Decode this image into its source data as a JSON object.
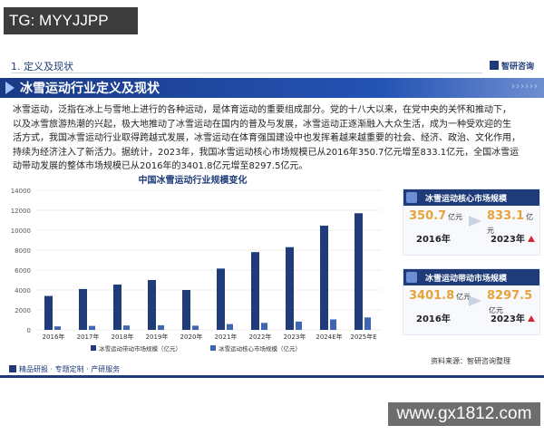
{
  "watermark_top": "TG: MYYJJPP",
  "section": {
    "title": "1. 定义及现状"
  },
  "brand": {
    "name": "智研咨询"
  },
  "banner": {
    "title": "冰雪运动行业定义及现状"
  },
  "paragraph": {
    "lines": [
      "冰雪运动，泛指在冰上与雪地上进行的各种运动，是体育运动的重要组成部分。党的十八大以来，在党中央的关怀和推动下，",
      "以及冰雪旅游热潮的兴起，极大地推动了冰雪运动在国内的普及与发展，冰雪运动正逐渐融入大众生活，成为一种受欢迎的生",
      "活方式，我国冰雪运动行业取得跨越式发展，冰雪运动在体育强国建设中也发挥着越来越重要的社会、经济、政治、文化作用，",
      "持续为经济注入了新活力。据统计，2023年，我国冰雪运动核心市场规模已从2016年350.7亿元增至833.1亿元，全国冰雪运",
      "动带动发展的整体市场规模已从2016年的3401.8亿元增至8297.5亿元。"
    ]
  },
  "chart_data": {
    "type": "bar",
    "title": "中国冰雪运动行业规模变化",
    "categories": [
      "2016年",
      "2017年",
      "2018年",
      "2019年",
      "2020年",
      "2021年",
      "2022年",
      "2023年",
      "2024E年",
      "2025年E"
    ],
    "series": [
      {
        "name": "冰雪运动带动市场规模（亿元）",
        "color": "#1f3b7a",
        "values": [
          3401.8,
          4100,
          4550,
          5000,
          4000,
          6150,
          7800,
          8297.5,
          10450,
          11700
        ]
      },
      {
        "name": "冰雪运动核心市场规模（亿元）",
        "color": "#3f66b0",
        "values": [
          350.7,
          400,
          440,
          460,
          420,
          580,
          700,
          833.1,
          1050,
          1250
        ]
      }
    ],
    "yticks": [
      "0",
      "2000",
      "4000",
      "6000",
      "8000",
      "10000",
      "12000",
      "14000"
    ],
    "ylim": [
      0,
      14000
    ],
    "grid": true,
    "legend": "bottom"
  },
  "cards": [
    {
      "title": "冰雪运动核心市场规模",
      "from_value": "350.7",
      "to_value": "833.1",
      "unit": "亿元",
      "from_year": "2016年",
      "to_year": "2023年"
    },
    {
      "title": "冰雪运动带动市场规模",
      "from_value": "3401.8",
      "to_value": "8297.5",
      "unit": "亿元",
      "from_year": "2016年",
      "to_year": "2023年"
    }
  ],
  "source": "资料来源：智研咨询整理",
  "footer": "精品研报 · 专题定制 · 产研服务",
  "watermark_bottom": "www.gx1812.com"
}
